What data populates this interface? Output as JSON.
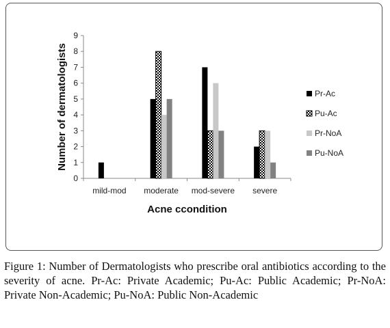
{
  "chart_data": {
    "type": "bar",
    "title": "",
    "xlabel": "Acne ccondition",
    "ylabel": "Number of dermatologists",
    "ylim": [
      0,
      9
    ],
    "yticks": [
      0,
      1,
      2,
      3,
      4,
      5,
      6,
      7,
      8,
      9
    ],
    "grid": false,
    "legend_position": "right",
    "categories": [
      "mild-mod",
      "moderate",
      "mod-severe",
      "severe"
    ],
    "series": [
      {
        "name": "Pr-Ac",
        "values": [
          1,
          5,
          7,
          2
        ],
        "color": "#000000",
        "pattern": "solid"
      },
      {
        "name": "Pu-Ac",
        "values": [
          0,
          8,
          3,
          3
        ],
        "color": "#000000",
        "pattern": "checker"
      },
      {
        "name": "Pr-NoA",
        "values": [
          0,
          4,
          6,
          3
        ],
        "color": "#c8c8c8",
        "pattern": "solid"
      },
      {
        "name": "Pu-NoA",
        "values": [
          0,
          5,
          3,
          1
        ],
        "color": "#828282",
        "pattern": "solid"
      }
    ]
  },
  "caption": {
    "label": "Figure 1:",
    "text": " Number of Dermatologists who prescribe oral antibiotics according to the severity of acne. Pr-Ac: Private Academic; Pu-Ac: Public Academic; Pr-NoA: Private Non-Academic; Pu-NoA: Public Non-Academic"
  }
}
